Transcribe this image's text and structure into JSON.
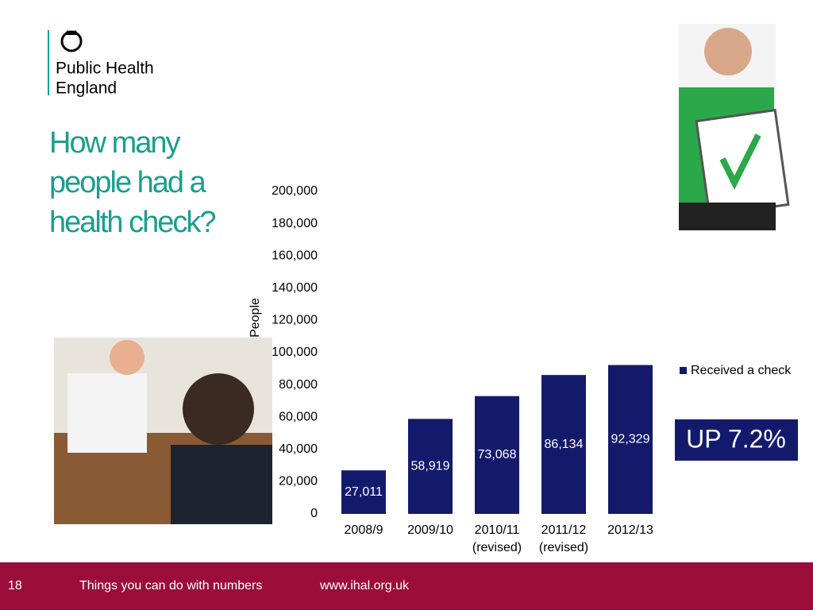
{
  "logo": {
    "line1": "Public Health",
    "line2": "England"
  },
  "heading": [
    "How many",
    "people had a",
    "health check?"
  ],
  "footer": {
    "page": "18",
    "text": "Things you can do with numbers",
    "url": "www.ihal.org.uk"
  },
  "chart_data": {
    "type": "bar",
    "y_label": "People",
    "categories": [
      "2008/9",
      "2009/10",
      "2010/11 (revised)",
      "2011/12 (revised)",
      "2012/13"
    ],
    "series": [
      {
        "name": "Received a check",
        "color": "#141a6b",
        "values": [
          27011,
          58919,
          73068,
          86134,
          92329
        ],
        "value_labels": [
          "27,011",
          "58,919",
          "73,068",
          "86,134",
          "92,329"
        ]
      }
    ],
    "ylim": [
      0,
      200000
    ],
    "yticks": [
      0,
      {
        "value": 20000,
        "label": "20,000"
      },
      {
        "value": 40000,
        "label": "40,000"
      },
      {
        "value": 60000,
        "label": "60,000"
      },
      {
        "value": 80000,
        "label": "80,000"
      },
      {
        "value": 100000,
        "label": "100,000"
      },
      {
        "value": 120000,
        "label": "120,000"
      },
      {
        "value": 140000,
        "label": "140,000"
      },
      {
        "value": 160000,
        "label": "160,000"
      },
      {
        "value": 180000,
        "label": "180,000"
      },
      {
        "value": 200000,
        "label": "200,000"
      }
    ],
    "annotation": "UP 7.2%",
    "legend": "right"
  }
}
